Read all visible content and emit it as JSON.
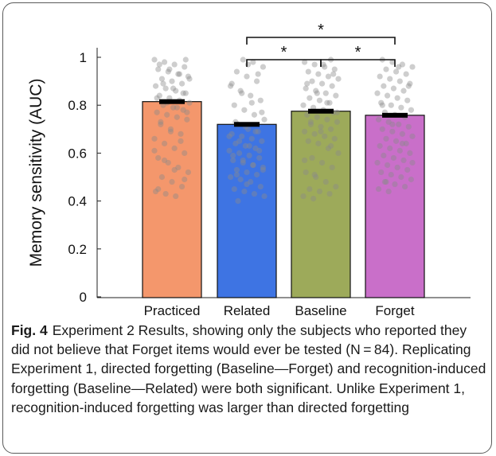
{
  "chart_data": {
    "type": "bar",
    "categories": [
      "Practiced",
      "Related",
      "Baseline",
      "Forget"
    ],
    "values": [
      0.815,
      0.72,
      0.775,
      0.758
    ],
    "ylabel": "Memory sensitivity (AUC)",
    "xlabel": "",
    "ylim": [
      0,
      1
    ],
    "yticks": [
      0,
      0.2,
      0.4,
      0.6,
      0.8,
      1
    ],
    "ytick_labels": [
      "0",
      "0.2",
      "0.4",
      "0.6",
      "0.8",
      "1"
    ],
    "bar_colors": [
      "#f4976c",
      "#3e74e3",
      "#9daa5a",
      "#c96fc9"
    ],
    "significance": [
      {
        "from": "Related",
        "to": "Baseline",
        "label": "*"
      },
      {
        "from": "Baseline",
        "to": "Forget",
        "label": "*"
      },
      {
        "from": "Related",
        "to": "Forget",
        "label": "*"
      }
    ],
    "points": [
      [
        0.99,
        0.98,
        0.97,
        0.96,
        0.95,
        0.94,
        0.93,
        0.92,
        0.91,
        0.9,
        0.89,
        0.88,
        0.87,
        0.86,
        0.85,
        0.84,
        0.83,
        0.82,
        0.81,
        0.8,
        0.79,
        0.78,
        0.77,
        0.76,
        0.75,
        0.74,
        0.72,
        0.7,
        0.68,
        0.66,
        0.64,
        0.62,
        0.6,
        0.58,
        0.56,
        0.54,
        0.52,
        0.5,
        0.48,
        0.46,
        0.44,
        0.43,
        0.42,
        0.99,
        0.97,
        0.95,
        0.93,
        0.91,
        0.89,
        0.87,
        0.85,
        0.83,
        0.81,
        0.79,
        0.77,
        0.73,
        0.69,
        0.65,
        0.61,
        0.57,
        0.53,
        0.49,
        0.45
      ],
      [
        0.99,
        0.98,
        0.96,
        0.94,
        0.92,
        0.9,
        0.88,
        0.86,
        0.84,
        0.82,
        0.8,
        0.78,
        0.76,
        0.74,
        0.72,
        0.7,
        0.69,
        0.68,
        0.67,
        0.66,
        0.65,
        0.64,
        0.63,
        0.62,
        0.61,
        0.6,
        0.59,
        0.58,
        0.57,
        0.56,
        0.55,
        0.54,
        0.53,
        0.52,
        0.51,
        0.5,
        0.49,
        0.48,
        0.46,
        0.45,
        0.44,
        0.43,
        0.42,
        0.4,
        0.97,
        0.93,
        0.89,
        0.85,
        0.81,
        0.77,
        0.73,
        0.71,
        0.69,
        0.67,
        0.65,
        0.63,
        0.61,
        0.59,
        0.57,
        0.55,
        0.53,
        0.51,
        0.47
      ],
      [
        0.99,
        0.98,
        0.97,
        0.96,
        0.95,
        0.94,
        0.93,
        0.92,
        0.91,
        0.9,
        0.89,
        0.88,
        0.87,
        0.86,
        0.85,
        0.84,
        0.83,
        0.82,
        0.81,
        0.8,
        0.79,
        0.78,
        0.77,
        0.76,
        0.75,
        0.74,
        0.73,
        0.72,
        0.71,
        0.7,
        0.69,
        0.68,
        0.67,
        0.66,
        0.65,
        0.64,
        0.62,
        0.6,
        0.58,
        0.56,
        0.54,
        0.52,
        0.5,
        0.48,
        0.46,
        0.45,
        0.44,
        0.43,
        0.42,
        0.41,
        0.97,
        0.93,
        0.89,
        0.85,
        0.81,
        0.77,
        0.73,
        0.69,
        0.63,
        0.57,
        0.51
      ],
      [
        0.99,
        0.98,
        0.97,
        0.96,
        0.95,
        0.94,
        0.93,
        0.92,
        0.91,
        0.9,
        0.89,
        0.88,
        0.87,
        0.86,
        0.85,
        0.84,
        0.83,
        0.82,
        0.81,
        0.8,
        0.79,
        0.78,
        0.77,
        0.76,
        0.75,
        0.74,
        0.73,
        0.72,
        0.71,
        0.7,
        0.69,
        0.68,
        0.67,
        0.66,
        0.65,
        0.64,
        0.63,
        0.62,
        0.61,
        0.6,
        0.59,
        0.58,
        0.57,
        0.56,
        0.55,
        0.54,
        0.53,
        0.52,
        0.51,
        0.5,
        0.49,
        0.48,
        0.47,
        0.46,
        0.45,
        0.44,
        0.96,
        0.88,
        0.8,
        0.72,
        0.64,
        0.56,
        0.48
      ]
    ]
  },
  "caption": {
    "label": "Fig. 4",
    "text": "Experiment 2 Results, showing only the subjects who reported they did not believe that Forget items would ever be tested (N = 84). Replicating Experiment 1, directed forgetting (Baseline—Forget) and recognition-induced forgetting (Baseline—Related) were both significant. Unlike Experiment 1, recognition-induced forgetting was larger than directed forgetting"
  }
}
